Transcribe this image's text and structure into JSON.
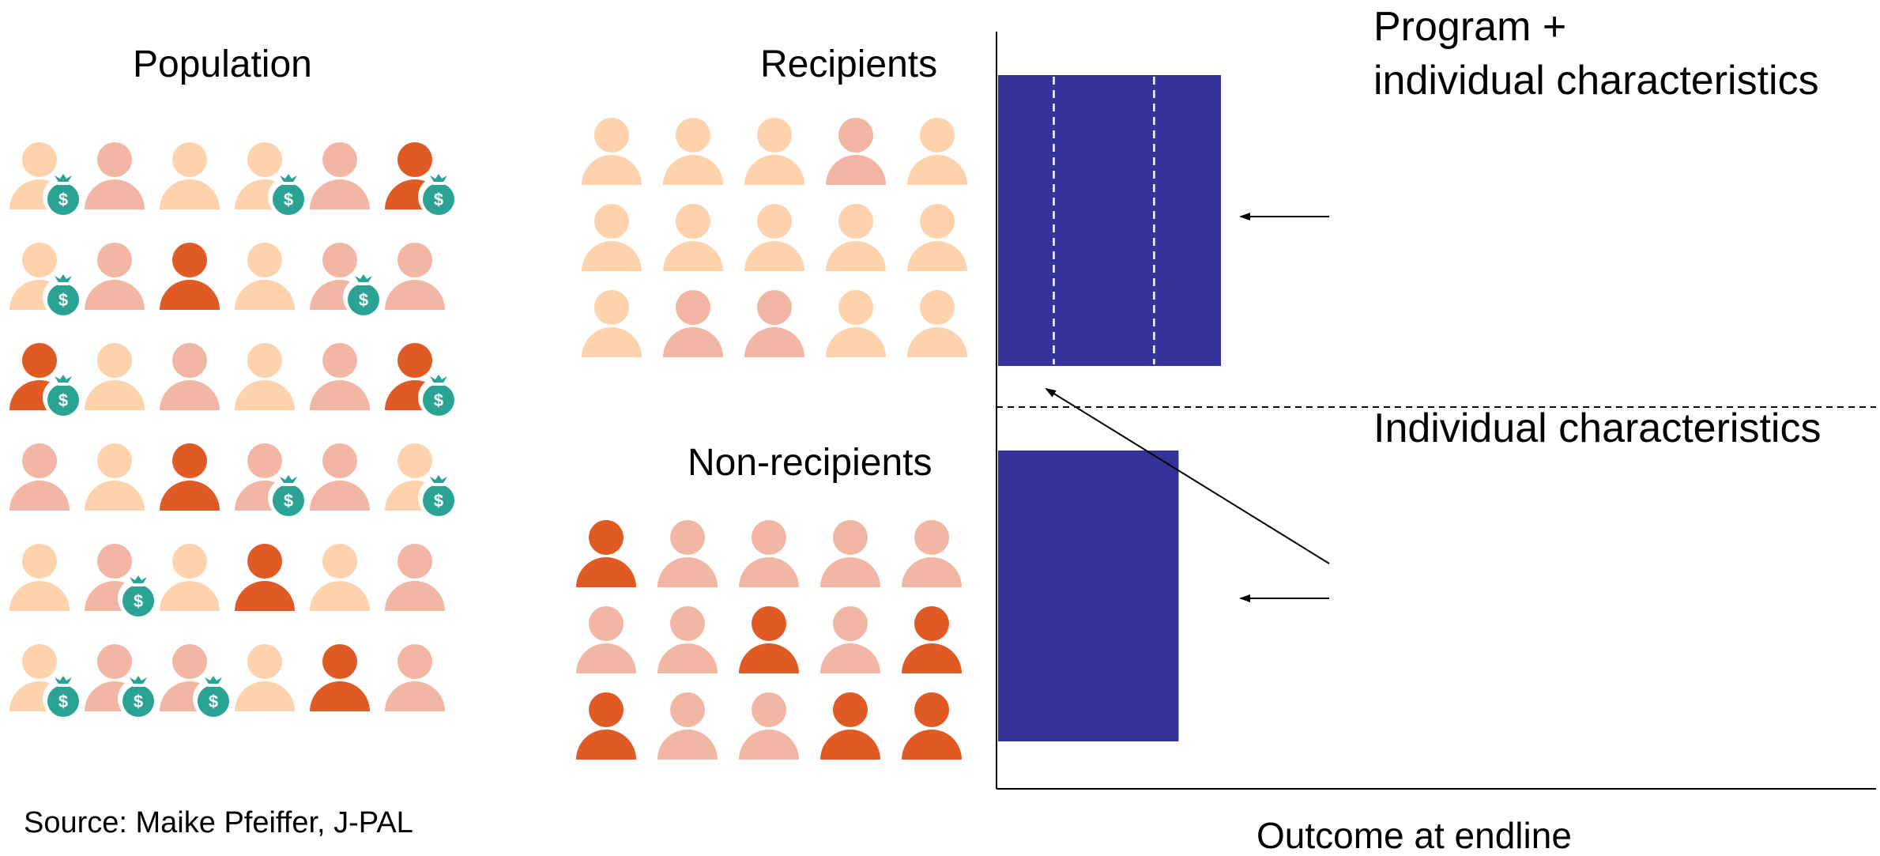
{
  "labels": {
    "population": "Population",
    "recipients": "Recipients",
    "non_recipients": "Non-recipients",
    "program_line1": "Program +",
    "program_line2": "individual characteristics",
    "individual": "Individual characteristics",
    "source": "Source: Maike Pfeiffer, J-PAL",
    "x_axis": "Outcome at endline"
  },
  "colors": {
    "light": "#fdd2ad",
    "medium": "#f2b6a4",
    "dark": "#e05a25",
    "money_bag": "#2aa394",
    "bar": "#333399"
  },
  "population_grid": [
    [
      {
        "c": "light",
        "m": true
      },
      {
        "c": "medium",
        "m": false
      },
      {
        "c": "light",
        "m": false
      },
      {
        "c": "light",
        "m": true
      },
      {
        "c": "medium",
        "m": false
      },
      {
        "c": "dark",
        "m": true
      }
    ],
    [
      {
        "c": "light",
        "m": true
      },
      {
        "c": "medium",
        "m": false
      },
      {
        "c": "dark",
        "m": false
      },
      {
        "c": "light",
        "m": false
      },
      {
        "c": "medium",
        "m": true
      },
      {
        "c": "medium",
        "m": false
      }
    ],
    [
      {
        "c": "dark",
        "m": true
      },
      {
        "c": "light",
        "m": false
      },
      {
        "c": "medium",
        "m": false
      },
      {
        "c": "light",
        "m": false
      },
      {
        "c": "medium",
        "m": false
      },
      {
        "c": "dark",
        "m": true
      }
    ],
    [
      {
        "c": "medium",
        "m": false
      },
      {
        "c": "light",
        "m": false
      },
      {
        "c": "dark",
        "m": false
      },
      {
        "c": "medium",
        "m": true
      },
      {
        "c": "medium",
        "m": false
      },
      {
        "c": "light",
        "m": true
      }
    ],
    [
      {
        "c": "light",
        "m": false
      },
      {
        "c": "medium",
        "m": true
      },
      {
        "c": "light",
        "m": false
      },
      {
        "c": "dark",
        "m": false
      },
      {
        "c": "light",
        "m": false
      },
      {
        "c": "medium",
        "m": false
      }
    ],
    [
      {
        "c": "light",
        "m": true
      },
      {
        "c": "medium",
        "m": true
      },
      {
        "c": "medium",
        "m": true
      },
      {
        "c": "light",
        "m": false
      },
      {
        "c": "dark",
        "m": false
      },
      {
        "c": "medium",
        "m": false
      }
    ]
  ],
  "recipients_grid": [
    [
      "light",
      "light",
      "light",
      "medium",
      "light"
    ],
    [
      "light",
      "light",
      "light",
      "light",
      "light"
    ],
    [
      "light",
      "medium",
      "medium",
      "light",
      "light"
    ]
  ],
  "non_recipients_grid": [
    [
      "dark",
      "medium",
      "medium",
      "medium",
      "medium"
    ],
    [
      "medium",
      "medium",
      "dark",
      "medium",
      "dark"
    ],
    [
      "dark",
      "medium",
      "medium",
      "dark",
      "dark"
    ]
  ],
  "bars": {
    "program_value": 1.0,
    "individual_value": 0.81,
    "program_dividers": [
      0.25,
      0.7
    ]
  }
}
